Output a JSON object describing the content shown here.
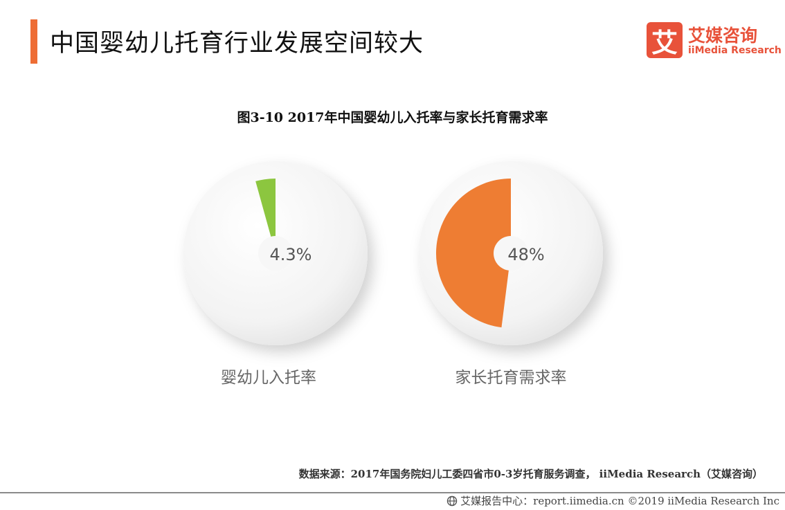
{
  "header": {
    "title": "中国婴幼儿托育行业发展空间较大",
    "accent_color": "#ee6d35"
  },
  "logo": {
    "mark": "艾",
    "name_cn": "艾媒咨询",
    "name_en": "iiMedia Research",
    "color": "#e8523a"
  },
  "chart_title": "图3-10 2017年中国婴幼儿入托率与家长托育需求率",
  "chart_data": [
    {
      "type": "pie",
      "title": "婴幼儿入托率",
      "value": 4.3,
      "label": "4.3%",
      "unit": "%",
      "color": "#8cc63f"
    },
    {
      "type": "pie",
      "title": "家长托育需求率",
      "value": 48,
      "label": "48%",
      "unit": "%",
      "color": "#ee7d33"
    }
  ],
  "source": "数据来源：2017年国务院妇儿工委四省市0-3岁托育服务调查，  iiMedia Research（艾媒咨询）",
  "footer": {
    "icon": "globe-icon",
    "text": "艾媒报告中心：report.iimedia.cn  ©2019  iiMedia Research  Inc"
  }
}
